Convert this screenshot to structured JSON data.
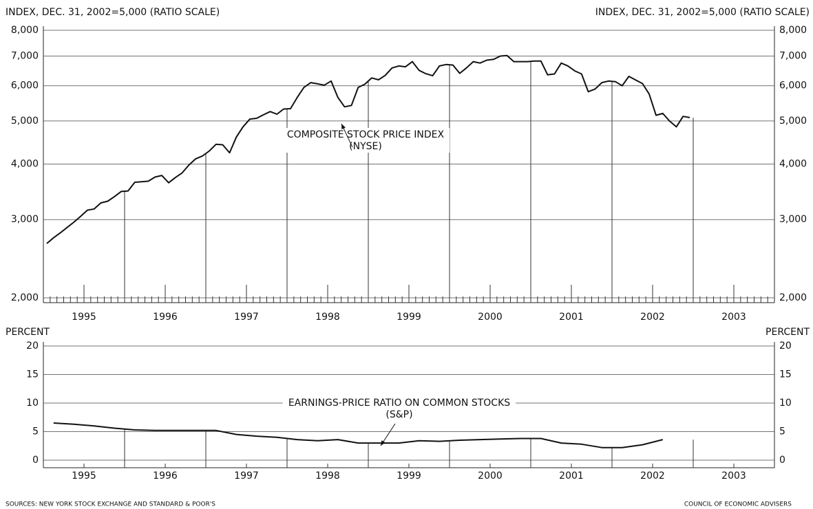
{
  "chart_data": [
    {
      "type": "line",
      "log_scale": true,
      "grid": true,
      "ylabel": "INDEX, DEC. 31, 2002=5,000 (RATIO SCALE)",
      "ylabel_right": "INDEX, DEC. 31, 2002=5,000 (RATIO SCALE)",
      "annotation": [
        "COMPOSITE STOCK PRICE INDEX",
        "(NYSE)"
      ],
      "categories": [
        "1995",
        "1996",
        "1997",
        "1998",
        "1999",
        "2000",
        "2001",
        "2002",
        "2003"
      ],
      "xlim": [
        1995,
        2004
      ],
      "ylim": [
        2000,
        8000
      ],
      "yticks": [
        {
          "value": 2000,
          "label": "2,000"
        },
        {
          "value": 3000,
          "label": "3,000"
        },
        {
          "value": 4000,
          "label": "4,000"
        },
        {
          "value": 5000,
          "label": "5,000"
        },
        {
          "value": 6000,
          "label": "6,000"
        },
        {
          "value": 7000,
          "label": "7,000"
        },
        {
          "value": 8000,
          "label": "8,000"
        }
      ],
      "x": [
        1995.042,
        1995.125,
        1995.208,
        1995.292,
        1995.375,
        1995.458,
        1995.542,
        1995.625,
        1995.708,
        1995.792,
        1995.875,
        1995.958,
        1996.042,
        1996.125,
        1996.208,
        1996.292,
        1996.375,
        1996.458,
        1996.542,
        1996.625,
        1996.708,
        1996.792,
        1996.875,
        1996.958,
        1997.042,
        1997.125,
        1997.208,
        1997.292,
        1997.375,
        1997.458,
        1997.542,
        1997.625,
        1997.708,
        1997.792,
        1997.875,
        1997.958,
        1998.042,
        1998.125,
        1998.208,
        1998.292,
        1998.375,
        1998.458,
        1998.542,
        1998.625,
        1998.708,
        1998.792,
        1998.875,
        1998.958,
        1999.042,
        1999.125,
        1999.208,
        1999.292,
        1999.375,
        1999.458,
        1999.542,
        1999.625,
        1999.708,
        1999.792,
        1999.875,
        1999.958,
        2000.042,
        2000.125,
        2000.208,
        2000.292,
        2000.375,
        2000.458,
        2000.542,
        2000.625,
        2000.708,
        2000.792,
        2000.875,
        2000.958,
        2001.042,
        2001.125,
        2001.208,
        2001.292,
        2001.375,
        2001.458,
        2001.542,
        2001.625,
        2001.708,
        2001.792,
        2001.875,
        2001.958,
        2002.042,
        2002.125,
        2002.208,
        2002.292,
        2002.375,
        2002.458,
        2002.542,
        2002.625,
        2002.708,
        2002.792,
        2002.875,
        2002.958
      ],
      "series": [
        {
          "color": "#111111",
          "values": [
            2650,
            2730,
            2800,
            2880,
            2960,
            3050,
            3150,
            3170,
            3270,
            3300,
            3380,
            3470,
            3480,
            3640,
            3650,
            3660,
            3740,
            3770,
            3630,
            3730,
            3820,
            3980,
            4110,
            4170,
            4280,
            4430,
            4420,
            4240,
            4600,
            4850,
            5050,
            5070,
            5160,
            5250,
            5180,
            5320,
            5330,
            5650,
            5950,
            6100,
            6060,
            6020,
            6150,
            5650,
            5380,
            5420,
            5950,
            6050,
            6250,
            6190,
            6330,
            6580,
            6650,
            6620,
            6800,
            6500,
            6390,
            6320,
            6650,
            6700,
            6680,
            6400,
            6580,
            6800,
            6750,
            6850,
            6880,
            7000,
            7020,
            6800,
            6800,
            6800,
            6820,
            6820,
            6350,
            6380,
            6750,
            6650,
            6480,
            6380,
            5820,
            5900,
            6100,
            6150,
            6130,
            6000,
            6300,
            6180,
            6070,
            5750,
            5150,
            5200,
            5000,
            4850,
            5120,
            5090
          ]
        }
      ]
    },
    {
      "type": "line",
      "grid": true,
      "ylabel": "PERCENT",
      "ylabel_right": "PERCENT",
      "annotation": [
        "EARNINGS-PRICE RATIO ON COMMON STOCKS",
        "(S&P)"
      ],
      "categories": [
        "1995",
        "1996",
        "1997",
        "1998",
        "1999",
        "2000",
        "2001",
        "2002",
        "2003"
      ],
      "xlim": [
        1995,
        2004
      ],
      "ylim": [
        0,
        20
      ],
      "yticks": [
        0,
        5,
        10,
        15,
        20
      ],
      "x": [
        1995.125,
        1995.375,
        1995.625,
        1995.875,
        1996.125,
        1996.375,
        1996.625,
        1996.875,
        1997.125,
        1997.375,
        1997.625,
        1997.875,
        1998.125,
        1998.375,
        1998.625,
        1998.875,
        1999.125,
        1999.375,
        1999.625,
        1999.875,
        2000.125,
        2000.375,
        2000.625,
        2000.875,
        2001.125,
        2001.375,
        2001.625,
        2001.875,
        2002.125,
        2002.375,
        2002.625
      ],
      "series": [
        {
          "color": "#111111",
          "values": [
            6.5,
            6.3,
            6.0,
            5.6,
            5.3,
            5.2,
            5.2,
            5.2,
            5.2,
            4.5,
            4.2,
            4.0,
            3.6,
            3.4,
            3.6,
            3.0,
            3.0,
            3.0,
            3.4,
            3.3,
            3.5,
            3.6,
            3.7,
            3.8,
            3.8,
            3.0,
            2.8,
            2.2,
            2.2,
            2.7,
            3.6
          ]
        }
      ]
    }
  ],
  "footer": {
    "sources": "SOURCES: NEW YORK STOCK EXCHANGE AND STANDARD & POOR'S",
    "credit": "COUNCIL OF ECONOMIC ADVISERS"
  }
}
